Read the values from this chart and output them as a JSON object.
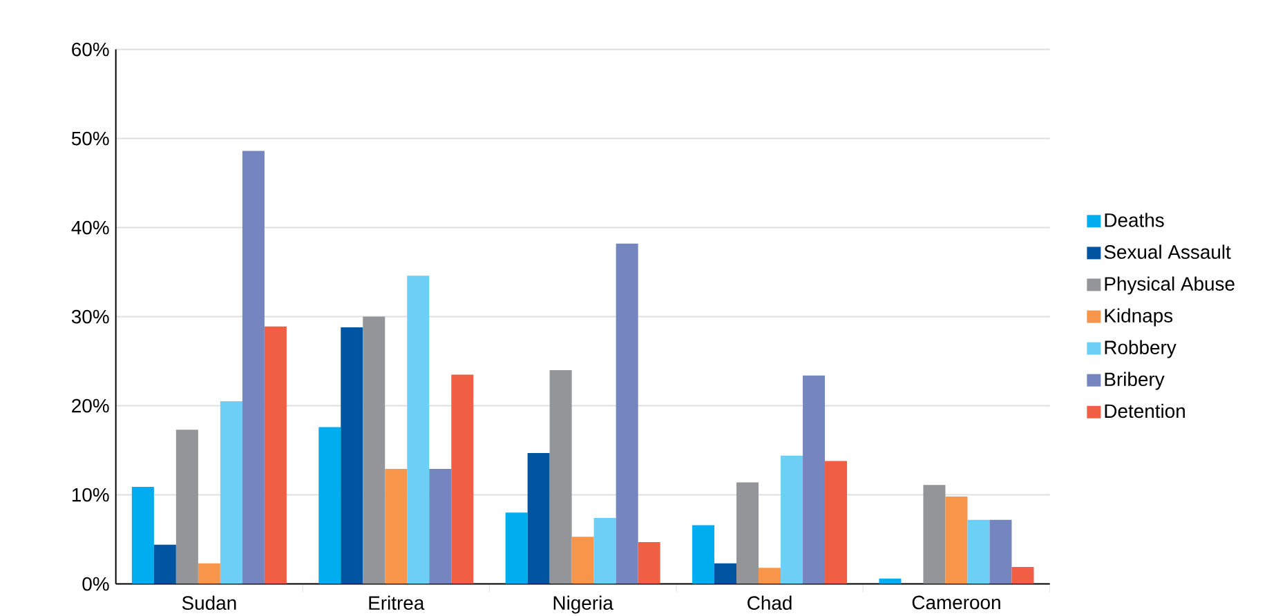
{
  "chart_data": {
    "type": "bar",
    "categories": [
      "Sudan",
      "Eritrea",
      "Nigeria",
      "Chad",
      "Cameroon"
    ],
    "series": [
      {
        "name": "Deaths",
        "color": "#00aeef",
        "values": [
          10.9,
          17.6,
          8.0,
          6.6,
          0.6
        ]
      },
      {
        "name": "Sexual Assault",
        "color": "#0054a0",
        "values": [
          4.4,
          28.8,
          14.7,
          2.3,
          0
        ]
      },
      {
        "name": "Physical Abuse",
        "color": "#939598",
        "values": [
          17.3,
          30.0,
          24.0,
          11.4,
          11.1
        ]
      },
      {
        "name": "Kidnaps",
        "color": "#f7964a",
        "values": [
          2.3,
          12.9,
          5.3,
          1.8,
          9.8
        ]
      },
      {
        "name": "Robbery",
        "color": "#6dcff6",
        "values": [
          20.5,
          34.6,
          7.4,
          14.4,
          7.2
        ]
      },
      {
        "name": "Bribery",
        "color": "#7485bf",
        "values": [
          48.6,
          12.9,
          38.2,
          23.4,
          7.2
        ]
      },
      {
        "name": "Detention",
        "color": "#f05f44",
        "values": [
          28.9,
          23.5,
          4.7,
          13.8,
          1.9
        ]
      }
    ],
    "ylim": [
      0,
      60
    ],
    "yticks": [
      {
        "value": 0,
        "label": "0%"
      },
      {
        "value": 10,
        "label": "10%"
      },
      {
        "value": 20,
        "label": "20%"
      },
      {
        "value": 30,
        "label": "30%"
      },
      {
        "value": 40,
        "label": "40%"
      },
      {
        "value": 50,
        "label": "50%"
      },
      {
        "value": 60,
        "label": "60%"
      }
    ],
    "grid": "y",
    "legend": "right"
  }
}
